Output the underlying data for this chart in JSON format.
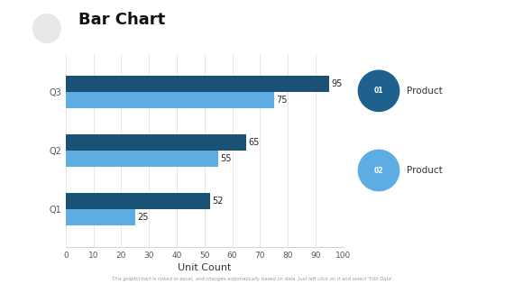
{
  "title": "Bar Chart",
  "categories": [
    "Q1",
    "Q2",
    "Q3"
  ],
  "product1_values": [
    52,
    65,
    95
  ],
  "product2_values": [
    25,
    55,
    75
  ],
  "product1_color": "#1a5276",
  "product2_color": "#5dade2",
  "xlabel": "Unit Count",
  "xlim": [
    0,
    100
  ],
  "xticks": [
    0,
    10,
    20,
    30,
    40,
    50,
    60,
    70,
    80,
    90,
    100
  ],
  "legend1_label": "Product",
  "legend2_label": "Product",
  "legend1_num": "01",
  "legend2_num": "02",
  "legend1_circle_color": "#1f618d",
  "legend2_circle_color": "#5dade2",
  "background_color": "#ffffff",
  "footnote": "This graph/chart is linked to excel, and changes automatically based on data. Just left click on it and select 'Edit Data'.",
  "title_fontsize": 13,
  "bar_height": 0.28,
  "xlabel_fontsize": 8,
  "value_fontsize": 7
}
